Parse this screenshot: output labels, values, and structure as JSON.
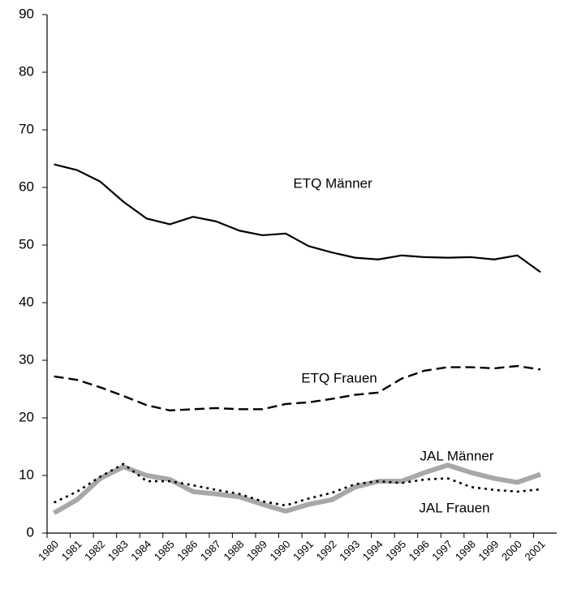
{
  "chart_data": {
    "type": "line",
    "categories": [
      "1980",
      "1981",
      "1982",
      "1983",
      "1984",
      "1985",
      "1986",
      "1987",
      "1988",
      "1989",
      "1990",
      "1991",
      "1992",
      "1993",
      "1994",
      "1995",
      "1996",
      "1997",
      "1998",
      "1999",
      "2000",
      "2001"
    ],
    "series": [
      {
        "name": "ETQ Männer",
        "color": "#000000",
        "line_style": "solid",
        "values": [
          64.0,
          63.0,
          61.0,
          57.5,
          54.6,
          53.6,
          54.9,
          54.1,
          52.5,
          51.7,
          52.0,
          49.8,
          48.7,
          47.8,
          47.5,
          48.2,
          47.9,
          47.8,
          47.9,
          47.5,
          48.2,
          45.3
        ]
      },
      {
        "name": "ETQ Frauen",
        "color": "#000000",
        "line_style": "dashed",
        "values": [
          27.2,
          26.6,
          25.3,
          23.8,
          22.2,
          21.3,
          21.5,
          21.7,
          21.5,
          21.5,
          22.4,
          22.7,
          23.3,
          24.0,
          24.4,
          26.8,
          28.2,
          28.8,
          28.8,
          28.6,
          29.0,
          28.4
        ]
      },
      {
        "name": "JAL Männer",
        "color": "#a8a8a8",
        "line_style": "thick",
        "values": [
          3.5,
          5.8,
          9.5,
          11.5,
          10.0,
          9.3,
          7.2,
          6.8,
          6.3,
          5.0,
          3.8,
          5.0,
          5.8,
          8.0,
          9.0,
          9.0,
          10.5,
          11.8,
          10.5,
          9.5,
          8.8,
          10.2
        ]
      },
      {
        "name": "JAL Frauen",
        "color": "#000000",
        "line_style": "dotted",
        "values": [
          5.3,
          7.2,
          9.8,
          12.0,
          9.0,
          9.0,
          8.3,
          7.5,
          6.8,
          5.5,
          4.8,
          6.0,
          7.0,
          8.5,
          9.0,
          8.7,
          9.3,
          9.5,
          8.0,
          7.5,
          7.2,
          7.6
        ]
      }
    ],
    "ylim": [
      0,
      90
    ],
    "yticks": [
      0,
      10,
      20,
      30,
      40,
      50,
      60,
      70,
      80,
      90
    ],
    "grid": false
  }
}
